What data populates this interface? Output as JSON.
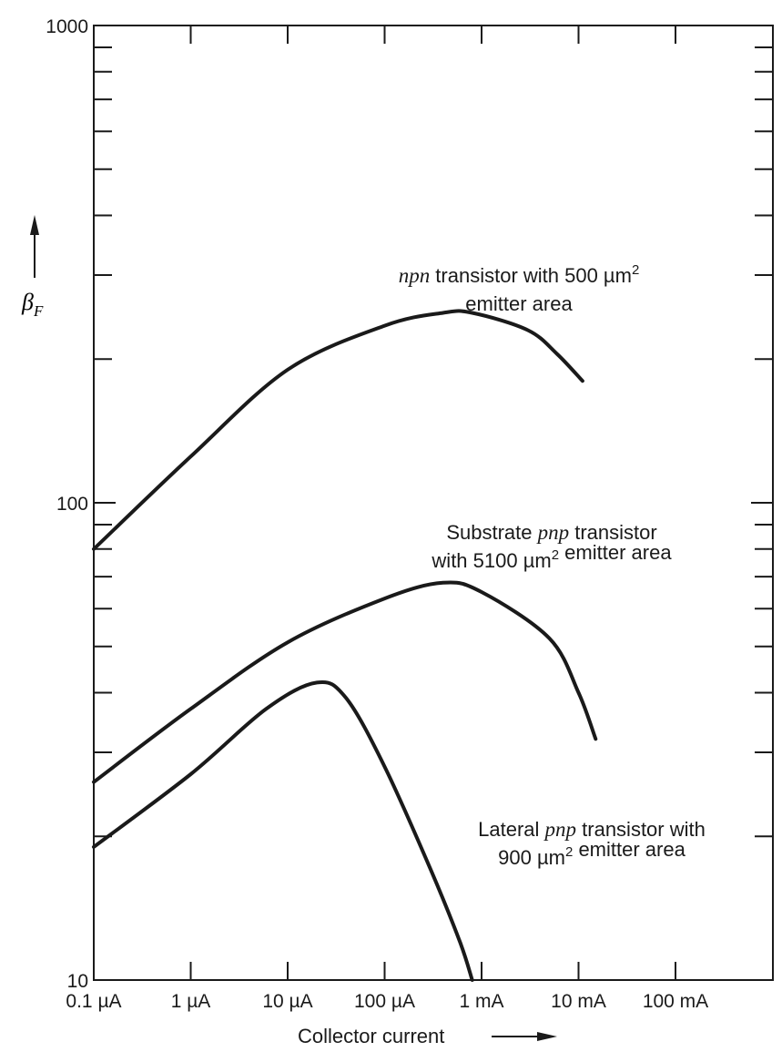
{
  "chart_data": {
    "type": "line",
    "x_scale": "log",
    "y_scale": "log",
    "ylim": [
      10,
      1000
    ],
    "xlim_amperes": [
      1e-07,
      1
    ],
    "xlabel": "Collector current",
    "ylabel": "β",
    "ylabel_subscript": "F",
    "x_tick_labels": [
      "0.1 µA",
      "1 µA",
      "10 µA",
      "100 µA",
      "1 mA",
      "10 mA",
      "100 mA"
    ],
    "x_tick_values_amperes": [
      1e-07,
      1e-06,
      1e-05,
      0.0001,
      0.001,
      0.01,
      0.1
    ],
    "y_tick_labels": [
      "10",
      "100",
      "1000"
    ],
    "y_tick_values": [
      10,
      100,
      1000
    ],
    "grid": false,
    "series": [
      {
        "annotation_lines": [
          [
            {
              "t": "npn",
              "i": true
            },
            {
              "t": " transistor with 500 µm"
            },
            {
              "t": "2",
              "sup": true
            }
          ],
          [
            {
              "t": "emitter area"
            }
          ]
        ],
        "x_amperes": [
          1e-07,
          1e-06,
          1e-05,
          0.0001,
          0.0004,
          0.0008,
          0.003,
          0.006,
          0.011
        ],
        "y": [
          80,
          125,
          190,
          235,
          250,
          250,
          230,
          205,
          180
        ]
      },
      {
        "annotation_lines": [
          [
            {
              "t": "Substrate "
            },
            {
              "t": "pnp",
              "i": true
            },
            {
              "t": " transistor"
            }
          ],
          [
            {
              "t": "with 5100 µm"
            },
            {
              "t": "2",
              "sup": true
            },
            {
              "t": " emitter area"
            }
          ]
        ],
        "x_amperes": [
          1e-07,
          1e-06,
          1e-05,
          0.0001,
          0.0004,
          0.001,
          0.005,
          0.01,
          0.015
        ],
        "y": [
          26,
          37,
          51,
          63,
          68,
          65,
          52,
          40,
          32
        ]
      },
      {
        "annotation_lines": [
          [
            {
              "t": "Lateral "
            },
            {
              "t": "pnp",
              "i": true
            },
            {
              "t": " transistor with"
            }
          ],
          [
            {
              "t": "900 µm"
            },
            {
              "t": "2",
              "sup": true
            },
            {
              "t": " emitter area"
            }
          ]
        ],
        "x_amperes": [
          1e-07,
          1e-06,
          6e-06,
          2e-05,
          4e-05,
          0.0001,
          0.0003,
          0.0006,
          0.0008
        ],
        "y": [
          19,
          27,
          37,
          42,
          39,
          28,
          17,
          12,
          10
        ]
      }
    ]
  }
}
